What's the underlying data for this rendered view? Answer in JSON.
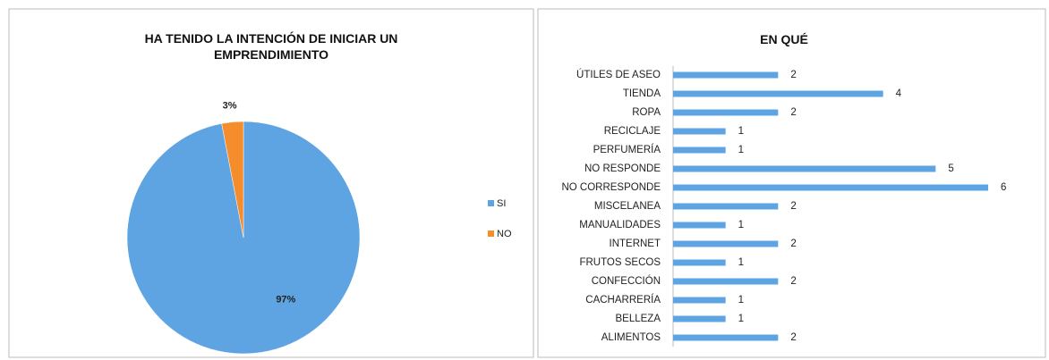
{
  "chart_data": [
    {
      "type": "pie",
      "title": "HA TENIDO LA INTENCIÓN DE INICIAR UN EMPRENDIMIENTO",
      "categories": [
        "SI",
        "NO"
      ],
      "values": [
        97,
        3
      ],
      "value_labels": [
        "97%",
        "3%"
      ],
      "colors": [
        "#5fa4e2",
        "#f58d2c"
      ],
      "legend": "right"
    },
    {
      "type": "bar",
      "orientation": "horizontal",
      "title": "EN QUÉ",
      "categories": [
        "ÚTILES DE ASEO",
        "TIENDA",
        "ROPA",
        "RECICLAJE",
        "PERFUMERÍA",
        "NO RESPONDE",
        "NO CORRESPONDE",
        "MISCELANEA",
        "MANUALIDADES",
        "INTERNET",
        "FRUTOS SECOS",
        "CONFECCIÓN",
        "CACHARRERÍA",
        "BELLEZA",
        "ALIMENTOS"
      ],
      "values": [
        2,
        4,
        2,
        1,
        1,
        5,
        6,
        2,
        1,
        2,
        1,
        2,
        1,
        1,
        2
      ],
      "color": "#5fa4e2",
      "xlim": [
        0,
        6
      ]
    }
  ]
}
